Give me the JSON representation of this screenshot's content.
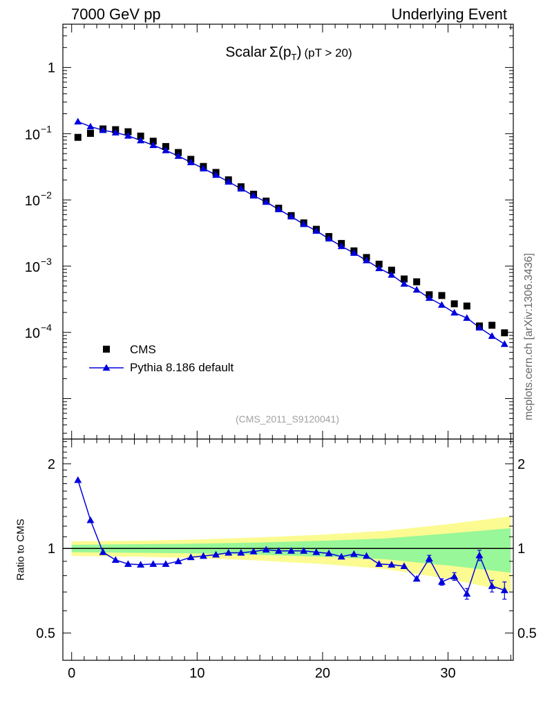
{
  "header": {
    "left": "7000 GeV pp",
    "right": "Underlying Event"
  },
  "side_label": "mcplots.cern.ch [arXiv:1306.3436]",
  "source_tag": "(CMS_2011_S9120041)",
  "title": {
    "prefix": "Scalar",
    "symbol": "Σ(p",
    "subscript": "T",
    "close": ")",
    "suffix": "(pT > 20)"
  },
  "colors": {
    "data": "#000000",
    "mc": "#0000dd",
    "band_inner": "#98f798",
    "band_outer": "#fbfb92",
    "reference_line": "#000000"
  },
  "chart_data": [
    {
      "type": "scatter",
      "panel": "main",
      "title": "Scalar Σ(pT) (pT > 20)",
      "xlabel": "",
      "ylabel": "",
      "yscale": "log",
      "ylim": [
        2.45e-06,
        4.5
      ],
      "xlim": [
        -0.7,
        35.2
      ],
      "y_tick_labels": [
        "1",
        "10^-1",
        "10^-2",
        "10^-3",
        "10^-4"
      ],
      "legend_position": "bottom-left",
      "series": [
        {
          "name": "CMS",
          "marker": "square",
          "x": [
            0.5,
            1.5,
            2.5,
            3.5,
            4.5,
            5.5,
            6.5,
            7.5,
            8.5,
            9.5,
            10.5,
            11.5,
            12.5,
            13.5,
            14.5,
            15.5,
            16.5,
            17.5,
            18.5,
            19.5,
            20.5,
            21.5,
            22.5,
            23.5,
            24.5,
            25.5,
            26.5,
            27.5,
            28.5,
            29.5,
            30.5,
            31.5,
            32.5,
            33.5,
            34.5
          ],
          "y": [
            0.088,
            0.101,
            0.118,
            0.115,
            0.107,
            0.092,
            0.077,
            0.064,
            0.052,
            0.041,
            0.032,
            0.026,
            0.0201,
            0.0158,
            0.0122,
            0.0096,
            0.0075,
            0.0058,
            0.0045,
            0.0036,
            0.0028,
            0.0022,
            0.0017,
            0.00135,
            0.00107,
            0.00087,
            0.00064,
            0.00058,
            0.00037,
            0.00036,
            0.00027,
            0.00025,
            0.000125,
            0.000128,
            9.85e-05
          ]
        },
        {
          "name": "Pythia 8.186 default",
          "marker": "triangle",
          "x": [
            0.5,
            1.5,
            2.5,
            3.5,
            4.5,
            5.5,
            6.5,
            7.5,
            8.5,
            9.5,
            10.5,
            11.5,
            12.5,
            13.5,
            14.5,
            15.5,
            16.5,
            17.5,
            18.5,
            19.5,
            20.5,
            21.5,
            22.5,
            23.5,
            24.5,
            25.5,
            26.5,
            27.5,
            28.5,
            29.5,
            30.5,
            31.5,
            32.5,
            33.5,
            34.5
          ],
          "y": [
            0.152,
            0.128,
            0.113,
            0.104,
            0.093,
            0.079,
            0.067,
            0.056,
            0.046,
            0.037,
            0.0298,
            0.0238,
            0.0188,
            0.0148,
            0.0116,
            0.0093,
            0.0072,
            0.0056,
            0.0043,
            0.0034,
            0.0026,
            0.002,
            0.00158,
            0.00122,
            0.00093,
            0.00074,
            0.00054,
            0.00044,
            0.00033,
            0.00026,
            0.000198,
            0.000165,
            0.000118,
            8.8e-05,
            6.65e-05
          ]
        }
      ]
    },
    {
      "type": "line",
      "panel": "ratio",
      "xlabel": "",
      "ylabel": "Ratio to CMS",
      "yscale": "log",
      "ylim": [
        0.4,
        2.45
      ],
      "xlim": [
        -0.7,
        35.2
      ],
      "x_tick_labels": [
        "0",
        "10",
        "20",
        "30"
      ],
      "y_tick_labels": [
        "0.5",
        "1",
        "2"
      ],
      "band_half_width": {
        "x_edges": [
          0,
          5,
          10,
          15,
          20,
          25,
          30,
          35
        ],
        "inner": [
          0.03,
          0.035,
          0.04,
          0.05,
          0.065,
          0.085,
          0.13,
          0.18
        ],
        "outer": [
          0.06,
          0.065,
          0.075,
          0.095,
          0.12,
          0.155,
          0.22,
          0.3
        ]
      },
      "series": [
        {
          "name": "Pythia 8.186 default",
          "x": [
            0.5,
            1.5,
            2.5,
            3.5,
            4.5,
            5.5,
            6.5,
            7.5,
            8.5,
            9.5,
            10.5,
            11.5,
            12.5,
            13.5,
            14.5,
            15.5,
            16.5,
            17.5,
            18.5,
            19.5,
            20.5,
            21.5,
            22.5,
            23.5,
            24.5,
            25.5,
            26.5,
            27.5,
            28.5,
            29.5,
            30.5,
            31.5,
            32.5,
            33.5,
            34.5
          ],
          "y": [
            1.75,
            1.26,
            0.97,
            0.91,
            0.88,
            0.875,
            0.88,
            0.88,
            0.9,
            0.93,
            0.94,
            0.95,
            0.965,
            0.965,
            0.975,
            0.99,
            0.98,
            0.98,
            0.98,
            0.97,
            0.96,
            0.935,
            0.955,
            0.94,
            0.88,
            0.875,
            0.865,
            0.78,
            0.92,
            0.76,
            0.795,
            0.69,
            0.945,
            0.735,
            0.71
          ],
          "yerr": [
            0,
            0,
            0,
            0,
            0,
            0,
            0,
            0,
            0,
            0,
            0,
            0,
            0,
            0,
            0,
            0,
            0,
            0,
            0,
            0,
            0,
            0,
            0,
            0,
            0,
            0,
            0,
            0.01,
            0.025,
            0.02,
            0.025,
            0.03,
            0.04,
            0.035,
            0.05
          ]
        }
      ]
    }
  ]
}
